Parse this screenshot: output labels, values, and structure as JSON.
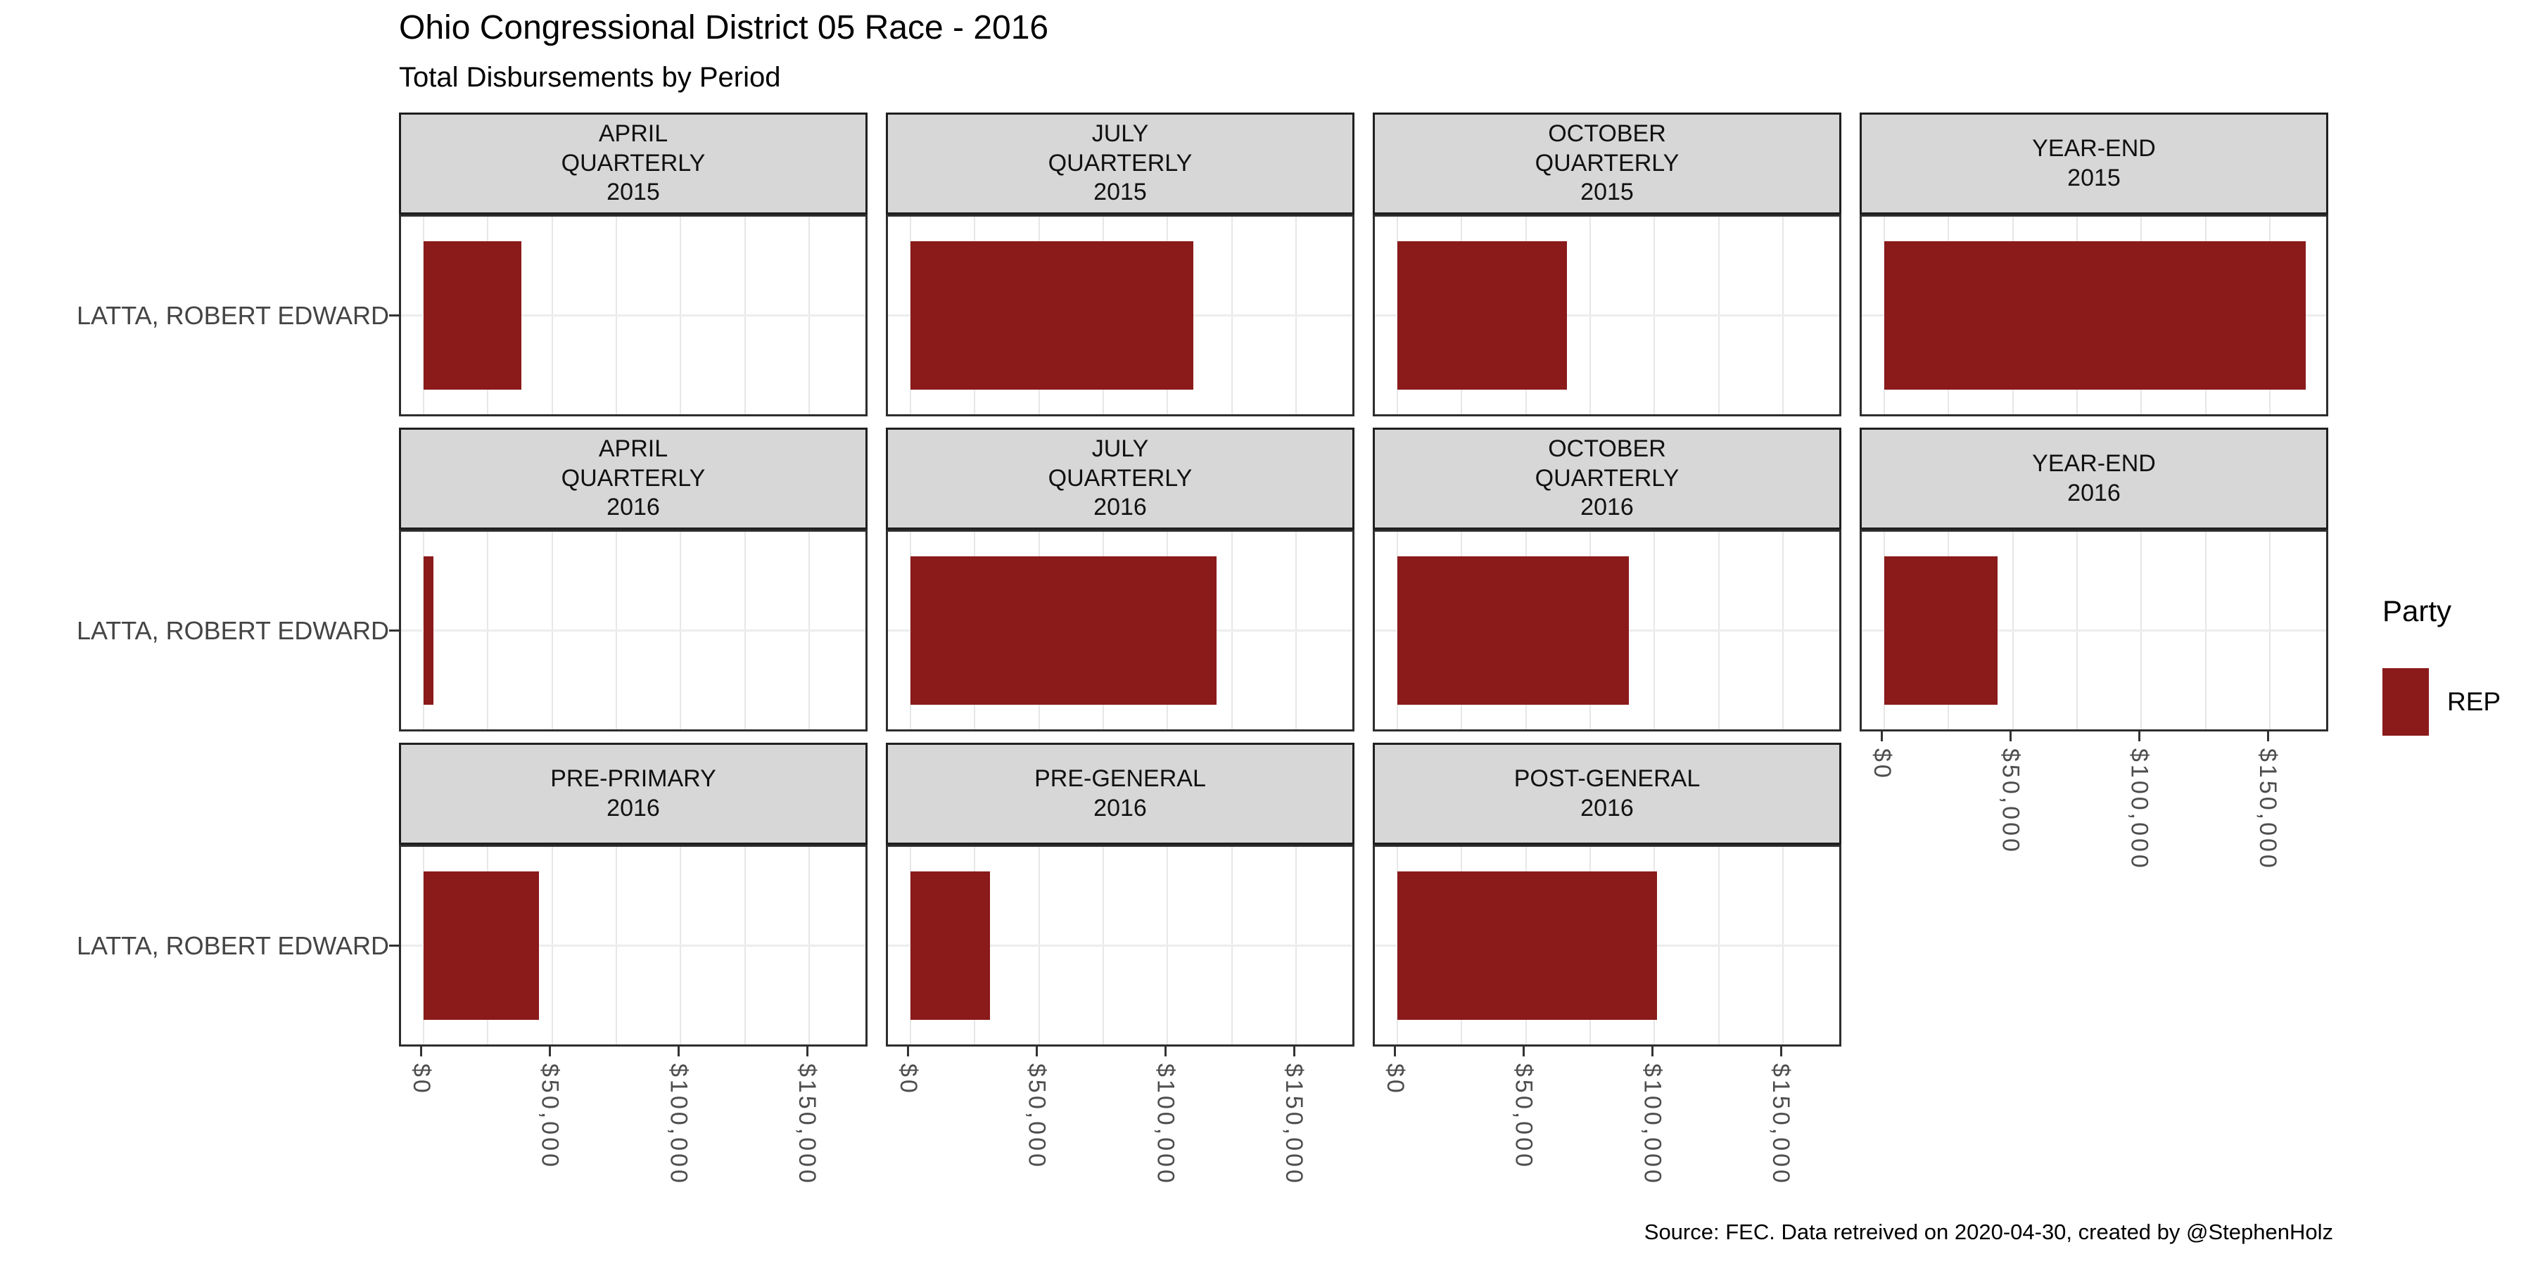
{
  "figure": {
    "title": "Ohio Congressional District 05 Race - 2016",
    "subtitle": "Total Disbursements by Period",
    "caption": "Source: FEC. Data retreived on 2020-04-30, created by @StephenHolz"
  },
  "legend": {
    "title": "Party",
    "items": [
      {
        "label": "REP",
        "color": "#8B1A1A"
      }
    ]
  },
  "chart_data": {
    "type": "bar",
    "orientation": "horizontal",
    "candidate": "LATTA, ROBERT EDWARD",
    "party": "REP",
    "bar_color": "#8B1A1A",
    "x_axis": {
      "tick_labels": [
        "$0",
        "$50,000",
        "$100,000",
        "$150,000"
      ],
      "tick_values": [
        0,
        50000,
        100000,
        150000
      ],
      "gridline_values": [
        0,
        25000,
        50000,
        75000,
        100000,
        125000,
        150000
      ],
      "range_usd": [
        -8700,
        173500
      ]
    },
    "facets": [
      {
        "period": "APRIL QUARTERLY",
        "year": "2015",
        "label_lines": [
          "APRIL",
          "QUARTERLY",
          "2015"
        ],
        "row": 1,
        "col": 1,
        "value_usd": 38000,
        "has_x_axis": false
      },
      {
        "period": "JULY QUARTERLY",
        "year": "2015",
        "label_lines": [
          "JULY",
          "QUARTERLY",
          "2015"
        ],
        "row": 1,
        "col": 2,
        "value_usd": 110000,
        "has_x_axis": false
      },
      {
        "period": "OCTOBER QUARTERLY",
        "year": "2015",
        "label_lines": [
          "OCTOBER",
          "QUARTERLY",
          "2015"
        ],
        "row": 1,
        "col": 3,
        "value_usd": 66000,
        "has_x_axis": false
      },
      {
        "period": "YEAR-END",
        "year": "2015",
        "label_lines": [
          "YEAR-END",
          "2015"
        ],
        "row": 1,
        "col": 4,
        "value_usd": 164000,
        "has_x_axis": false
      },
      {
        "period": "APRIL QUARTERLY",
        "year": "2016",
        "label_lines": [
          "APRIL",
          "QUARTERLY",
          "2016"
        ],
        "row": 2,
        "col": 1,
        "value_usd": 4000,
        "has_x_axis": false
      },
      {
        "period": "JULY QUARTERLY",
        "year": "2016",
        "label_lines": [
          "JULY",
          "QUARTERLY",
          "2016"
        ],
        "row": 2,
        "col": 2,
        "value_usd": 119000,
        "has_x_axis": false
      },
      {
        "period": "OCTOBER QUARTERLY",
        "year": "2016",
        "label_lines": [
          "OCTOBER",
          "QUARTERLY",
          "2016"
        ],
        "row": 2,
        "col": 3,
        "value_usd": 90000,
        "has_x_axis": false
      },
      {
        "period": "YEAR-END",
        "year": "2016",
        "label_lines": [
          "YEAR-END",
          "2016"
        ],
        "row": 2,
        "col": 4,
        "value_usd": 44000,
        "has_x_axis": true
      },
      {
        "period": "PRE-PRIMARY",
        "year": "2016",
        "label_lines": [
          "PRE-PRIMARY",
          "2016"
        ],
        "row": 3,
        "col": 1,
        "value_usd": 45000,
        "has_x_axis": true
      },
      {
        "period": "PRE-GENERAL",
        "year": "2016",
        "label_lines": [
          "PRE-GENERAL",
          "2016"
        ],
        "row": 3,
        "col": 2,
        "value_usd": 31000,
        "has_x_axis": true
      },
      {
        "period": "POST-GENERAL",
        "year": "2016",
        "label_lines": [
          "POST-GENERAL",
          "2016"
        ],
        "row": 3,
        "col": 3,
        "value_usd": 101000,
        "has_x_axis": true
      }
    ]
  }
}
